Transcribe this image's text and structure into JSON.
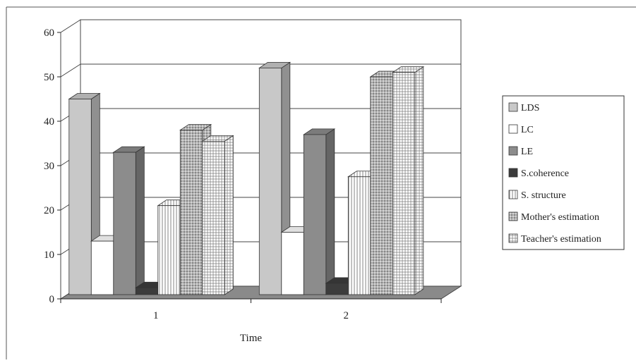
{
  "chart_data": {
    "type": "bar",
    "title": "",
    "xlabel": "Time",
    "ylabel": "",
    "categories": [
      "1",
      "2"
    ],
    "ylim": [
      0,
      60
    ],
    "yticks": [
      0,
      10,
      20,
      30,
      40,
      50,
      60
    ],
    "grid": true,
    "legend_position": "right",
    "series": [
      {
        "name": "LDS",
        "values": [
          45,
          52
        ],
        "color": "#c8c8c8",
        "pattern": "solid"
      },
      {
        "name": "LC",
        "values": [
          13,
          15
        ],
        "color": "#ffffff",
        "pattern": "solid"
      },
      {
        "name": "LE",
        "values": [
          33,
          37
        ],
        "color": "#8c8c8c",
        "pattern": "solid"
      },
      {
        "name": "S.coherence",
        "values": [
          2.5,
          3.5
        ],
        "color": "#3c3c3c",
        "pattern": "solid"
      },
      {
        "name": "S. structure",
        "values": [
          21,
          27.5
        ],
        "color": "#ffffff",
        "pattern": "vertical-lines"
      },
      {
        "name": "Mother's estimation",
        "values": [
          38,
          50
        ],
        "color": "#9a9a9a",
        "pattern": "dots"
      },
      {
        "name": "Teacher's estimation",
        "values": [
          35.5,
          51
        ],
        "color": "#ffffff",
        "pattern": "grid"
      }
    ]
  }
}
